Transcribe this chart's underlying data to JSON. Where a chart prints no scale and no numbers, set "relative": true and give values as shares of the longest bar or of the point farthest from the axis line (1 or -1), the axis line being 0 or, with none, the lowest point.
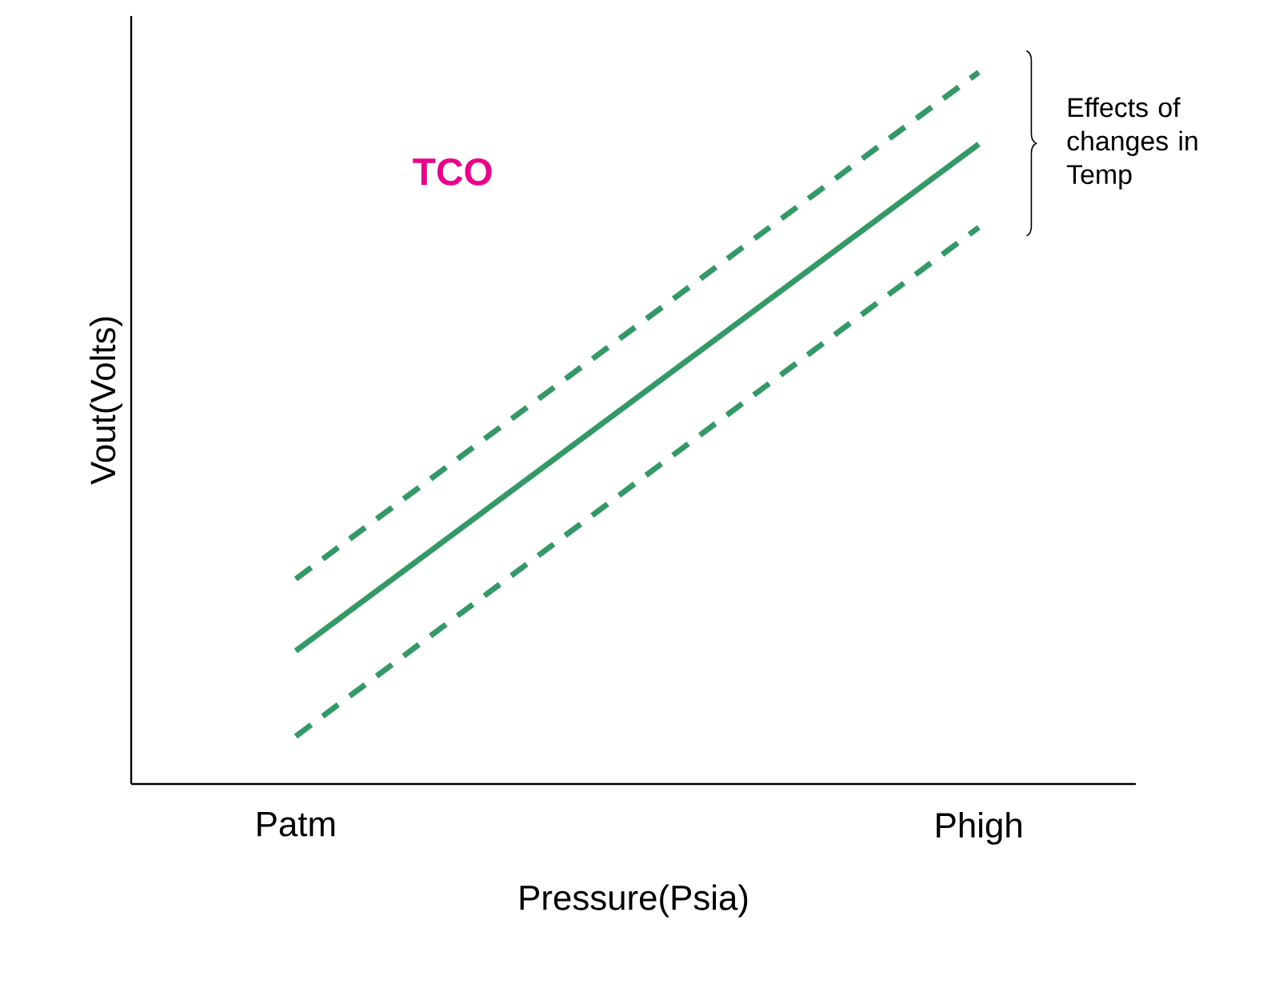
{
  "chart_data": {
    "type": "line",
    "relative": true,
    "xlabel": "Pressure(Psia)",
    "ylabel": "Vout(Volts)",
    "categories": [
      "Patm",
      "Phigh"
    ],
    "annotations": [
      "TCO",
      "Effects of changes in Temp"
    ],
    "series": [
      {
        "color": "#339966",
        "line_style": "dashed",
        "values": [
          0.288,
          1
        ]
      },
      {
        "color": "#339966",
        "line_style": "solid",
        "values": [
          0.187,
          0.899
        ]
      },
      {
        "color": "#339966",
        "line_style": "dashed",
        "values": [
          0.067,
          0.782
        ]
      }
    ]
  }
}
